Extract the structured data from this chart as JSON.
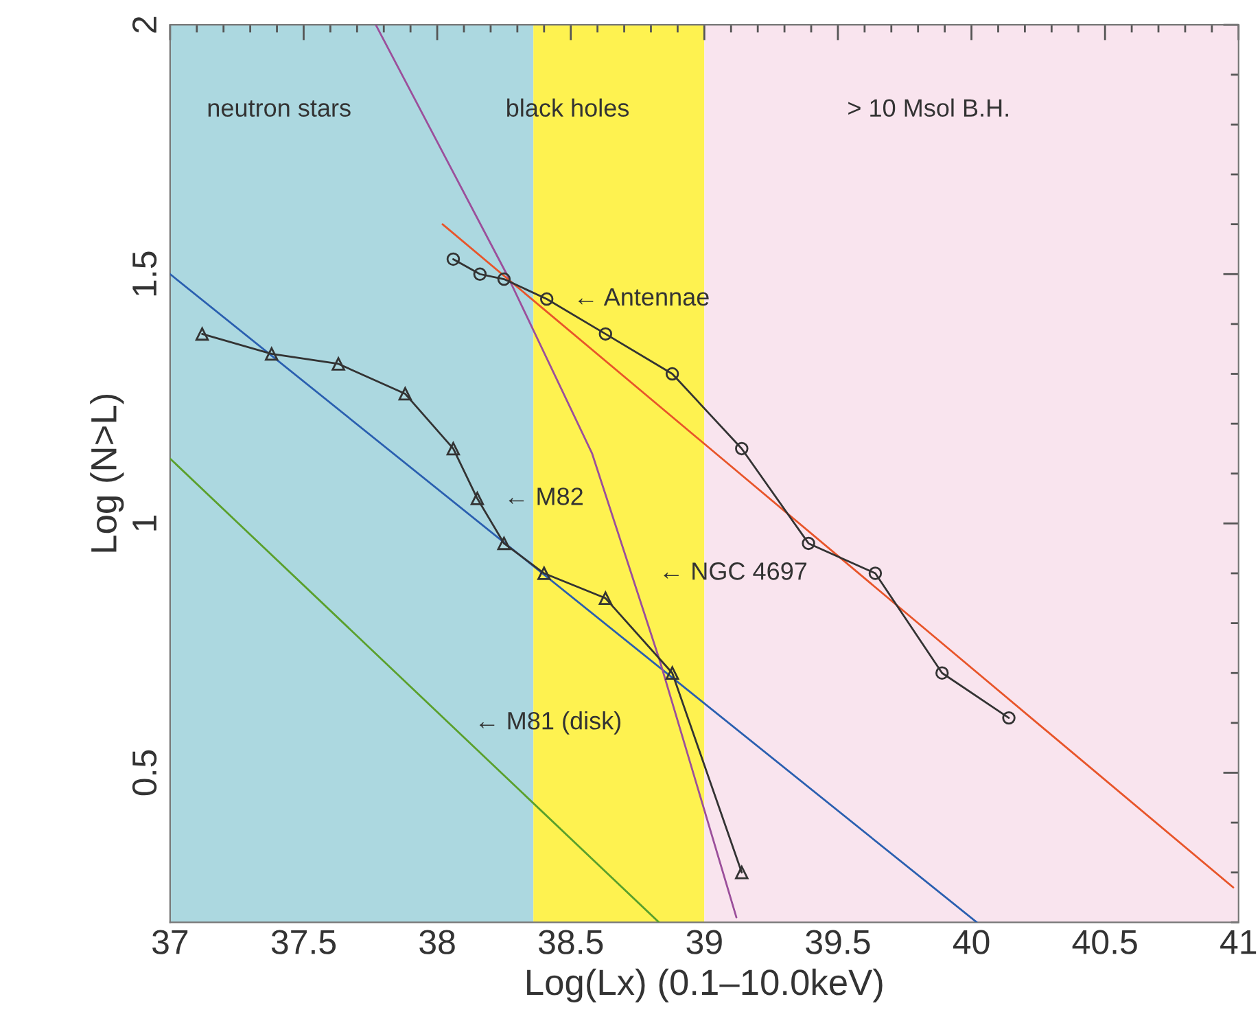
{
  "chart_data": {
    "type": "line",
    "xlabel": "Log(Lx) (0.1–10.0keV)",
    "ylabel": "Log (N>L)",
    "xlim": [
      37,
      41
    ],
    "ylim": [
      0.2,
      2
    ],
    "xticks": [
      37,
      {
        "value": 37.1,
        "label": null
      },
      {
        "value": 37.2,
        "label": null
      },
      {
        "value": 37.3,
        "label": null
      },
      {
        "value": 37.4,
        "label": null
      },
      37.5,
      {
        "value": 37.6,
        "label": null
      },
      {
        "value": 37.7,
        "label": null
      },
      {
        "value": 37.8,
        "label": null
      },
      {
        "value": 37.9,
        "label": null
      },
      38,
      {
        "value": 38.1,
        "label": null
      },
      {
        "value": 38.2,
        "label": null
      },
      {
        "value": 38.3,
        "label": null
      },
      {
        "value": 38.4,
        "label": null
      },
      38.5,
      {
        "value": 38.6,
        "label": null
      },
      {
        "value": 38.7,
        "label": null
      },
      {
        "value": 38.8,
        "label": null
      },
      {
        "value": 38.9,
        "label": null
      },
      39,
      {
        "value": 39.1,
        "label": null
      },
      {
        "value": 39.2,
        "label": null
      },
      {
        "value": 39.3,
        "label": null
      },
      {
        "value": 39.4,
        "label": null
      },
      39.5,
      {
        "value": 39.6,
        "label": null
      },
      {
        "value": 39.7,
        "label": null
      },
      {
        "value": 39.8,
        "label": null
      },
      {
        "value": 39.9,
        "label": null
      },
      40,
      {
        "value": 40.1,
        "label": null
      },
      {
        "value": 40.2,
        "label": null
      },
      {
        "value": 40.3,
        "label": null
      },
      {
        "value": 40.4,
        "label": null
      },
      40.5,
      {
        "value": 40.6,
        "label": null
      },
      {
        "value": 40.7,
        "label": null
      },
      {
        "value": 40.8,
        "label": null
      },
      {
        "value": 40.9,
        "label": null
      },
      41
    ],
    "yticks": [
      {
        "value": 0.2,
        "label": null
      },
      {
        "value": 0.3,
        "label": null
      },
      {
        "value": 0.4,
        "label": null
      },
      0.5,
      {
        "value": 0.6,
        "label": null
      },
      {
        "value": 0.7,
        "label": null
      },
      {
        "value": 0.8,
        "label": null
      },
      {
        "value": 0.9,
        "label": null
      },
      1,
      {
        "value": 1.1,
        "label": null
      },
      {
        "value": 1.2,
        "label": null
      },
      {
        "value": 1.3,
        "label": null
      },
      {
        "value": 1.4,
        "label": null
      },
      1.5,
      {
        "value": 1.6,
        "label": null
      },
      {
        "value": 1.7,
        "label": null
      },
      {
        "value": 1.8,
        "label": null
      },
      {
        "value": 1.9,
        "label": null
      },
      2
    ],
    "grid": false,
    "legend": false,
    "bands": [
      {
        "axis": "x",
        "from": 37,
        "to": 38.36,
        "label": "neutron stars",
        "color": "#acd8e0"
      },
      {
        "axis": "x",
        "from": 38.36,
        "to": 39,
        "label": "black holes",
        "color": "#fef250"
      },
      {
        "axis": "x",
        "from": 39,
        "to": 41,
        "label": "> 10 Msol B.H.",
        "color": "#f9e4ee"
      }
    ],
    "series": [
      {
        "color": "#2a5fb0",
        "marker": "none",
        "x": [
          37,
          40.02
        ],
        "values": [
          1.5,
          0.2
        ]
      },
      {
        "color": "#5aa02c",
        "marker": "none",
        "x": [
          37,
          38.83
        ],
        "values": [
          1.13,
          0.2
        ]
      },
      {
        "color": "#9b4f9b",
        "marker": "none",
        "x": [
          37.77,
          38.26,
          38.58,
          38.83,
          39.12
        ],
        "values": [
          2.0,
          1.5,
          1.14,
          0.73,
          0.21
        ]
      },
      {
        "color": "#e8552a",
        "marker": "none",
        "x": [
          38.02,
          40.98
        ],
        "values": [
          1.6,
          0.27
        ]
      },
      {
        "color": "#333333",
        "marker": "triangle",
        "x": [
          37.12,
          37.38,
          37.63,
          37.88,
          38.06,
          38.15,
          38.25,
          38.4,
          38.63,
          38.88,
          39.14
        ],
        "values": [
          1.38,
          1.34,
          1.32,
          1.26,
          1.15,
          1.05,
          0.96,
          0.9,
          0.85,
          0.7,
          0.3
        ]
      },
      {
        "color": "#333333",
        "marker": "circle",
        "x": [
          38.06,
          38.16,
          38.25,
          38.41,
          38.63,
          38.88,
          39.14,
          39.39,
          39.64,
          39.89,
          40.14
        ],
        "values": [
          1.53,
          1.5,
          1.49,
          1.45,
          1.38,
          1.3,
          1.15,
          0.96,
          0.9,
          0.7,
          0.61
        ]
      }
    ],
    "annotations": [
      {
        "text": "← Antennae",
        "x": 38.41,
        "y": 1.45
      },
      {
        "text": "← M82",
        "x": 38.15,
        "y": 1.05
      },
      {
        "text": "← NGC 4697",
        "x": 38.73,
        "y": 0.9
      },
      {
        "text": "← M81 (disk)",
        "x": 38.04,
        "y": 0.6
      }
    ]
  }
}
